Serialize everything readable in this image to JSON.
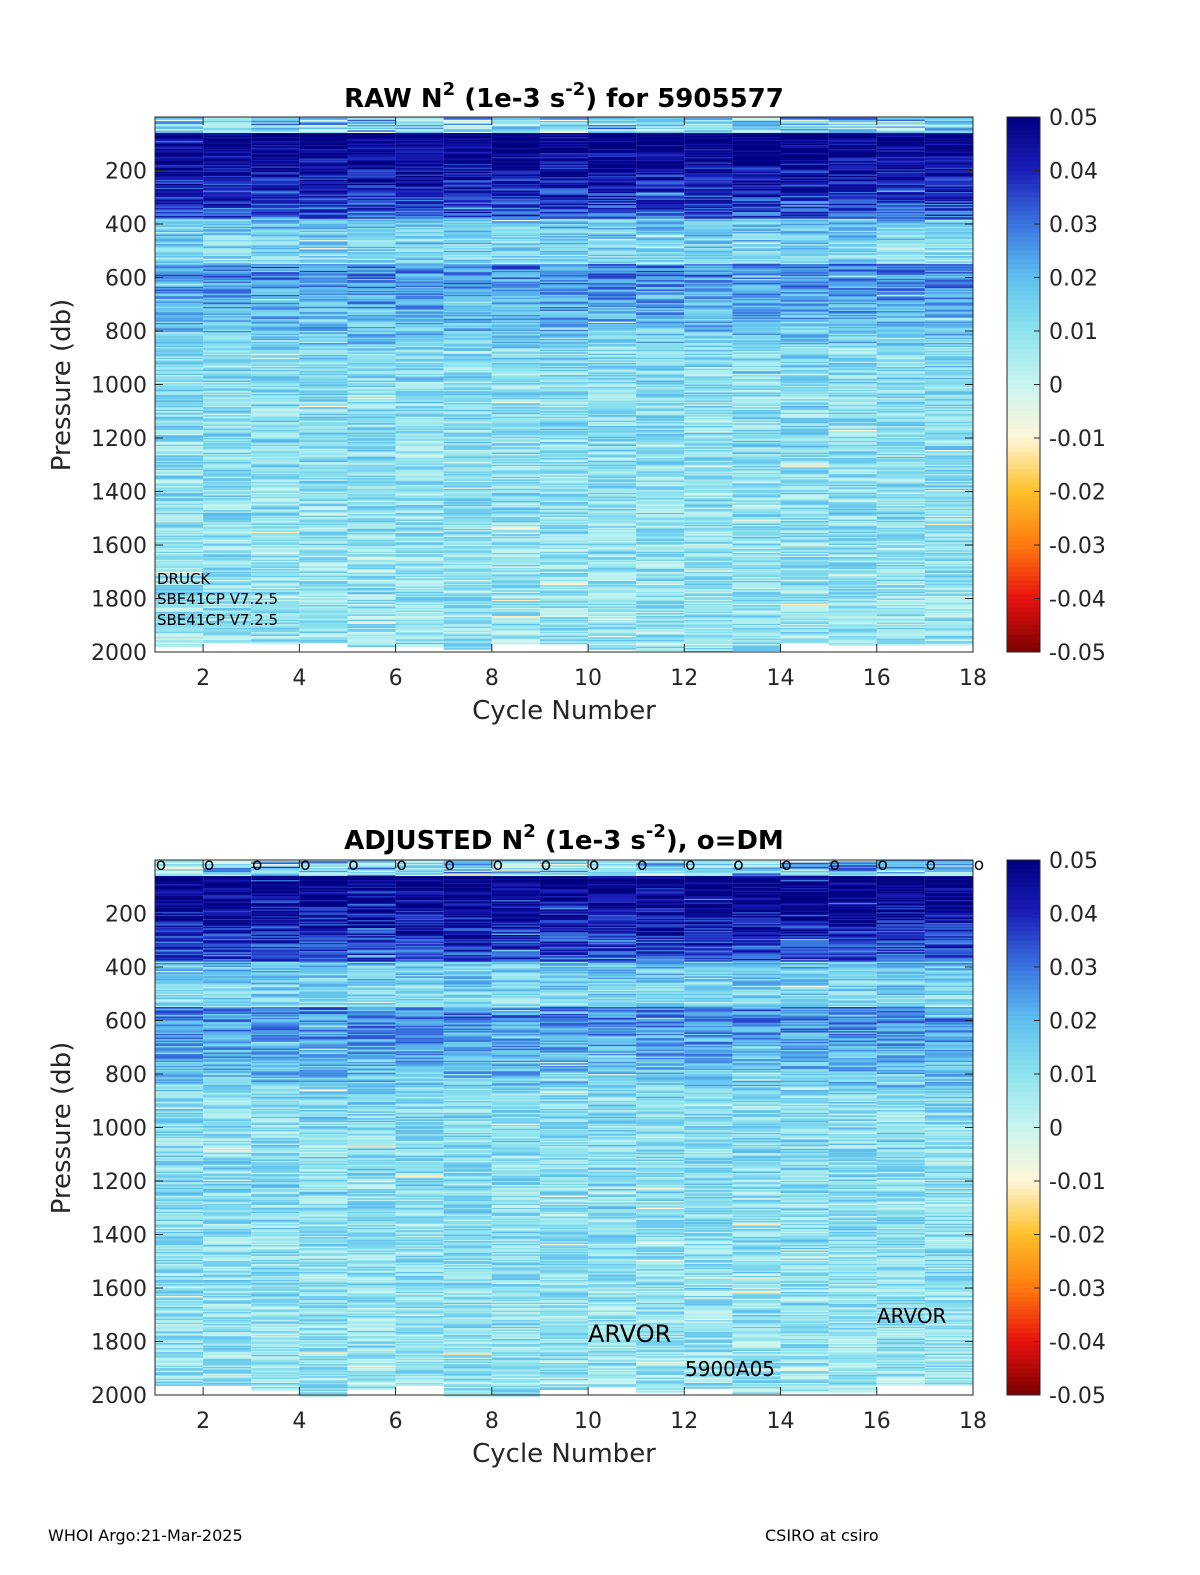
{
  "colors": {
    "colormap_stops": [
      "#7a0000",
      "#e8120f",
      "#ff7a0f",
      "#ffc02a",
      "#fff6d8",
      "#c8f5f0",
      "#8ee3ee",
      "#5fbfee",
      "#3a74e0",
      "#1a1eb8",
      "#000080"
    ],
    "axis": "#262626",
    "background": "#ffffff"
  },
  "footer": {
    "left": "WHOI Argo:21-Mar-2025",
    "right": "CSIRO at csiro"
  },
  "chart_data": [
    {
      "type": "heatmap",
      "title": "RAW N",
      "title_superscript": "2",
      "title_mid": " (1e-3 s",
      "title_superscript2": "-2",
      "title_end": ") for 5905577",
      "xlabel": "Cycle Number",
      "ylabel": "Pressure (db)",
      "xlim": [
        1,
        18
      ],
      "ylim": [
        2000,
        0
      ],
      "xticks": [
        "2",
        "4",
        "6",
        "8",
        "10",
        "12",
        "14",
        "16",
        "18"
      ],
      "yticks": [
        "200",
        "400",
        "600",
        "800",
        "1000",
        "1200",
        "1400",
        "1600",
        "1800",
        "2000"
      ],
      "x": [
        1,
        2,
        3,
        4,
        5,
        6,
        7,
        8,
        9,
        10,
        11,
        12,
        13,
        14,
        15,
        16,
        17
      ],
      "colorbar": {
        "range": [
          -0.05,
          0.05
        ],
        "ticks": [
          "0.05",
          "0.04",
          "0.03",
          "0.02",
          "0.01",
          "0",
          "-0.01",
          "-0.02",
          "-0.03",
          "-0.04",
          "-0.05"
        ]
      },
      "annotations": [
        "DRUCK",
        "SBE41CP V7.2.5",
        "SBE41CP V7.2.5"
      ],
      "dm_markers": []
    },
    {
      "type": "heatmap",
      "title": "ADJUSTED N",
      "title_superscript": "2",
      "title_mid": " (1e-3 s",
      "title_superscript2": "-2",
      "title_end": "), o=DM",
      "xlabel": "Cycle Number",
      "ylabel": "Pressure (db)",
      "xlim": [
        1,
        18
      ],
      "ylim": [
        2000,
        0
      ],
      "xticks": [
        "2",
        "4",
        "6",
        "8",
        "10",
        "12",
        "14",
        "16",
        "18"
      ],
      "yticks": [
        "200",
        "400",
        "600",
        "800",
        "1000",
        "1200",
        "1400",
        "1600",
        "1800",
        "2000"
      ],
      "x": [
        1,
        2,
        3,
        4,
        5,
        6,
        7,
        8,
        9,
        10,
        11,
        12,
        13,
        14,
        15,
        16,
        17
      ],
      "colorbar": {
        "range": [
          -0.05,
          0.05
        ],
        "ticks": [
          "0.05",
          "0.04",
          "0.03",
          "0.02",
          "0.01",
          "0",
          "-0.01",
          "-0.02",
          "-0.03",
          "-0.04",
          "-0.05"
        ]
      },
      "annotations": [
        "ARVOR",
        "5900A05",
        "ARVOR"
      ],
      "dm_marker_symbol": "o",
      "dm_markers": [
        1,
        2,
        3,
        4,
        5,
        6,
        7,
        8,
        9,
        10,
        11,
        12,
        13,
        14,
        15,
        16,
        17,
        18
      ]
    }
  ]
}
